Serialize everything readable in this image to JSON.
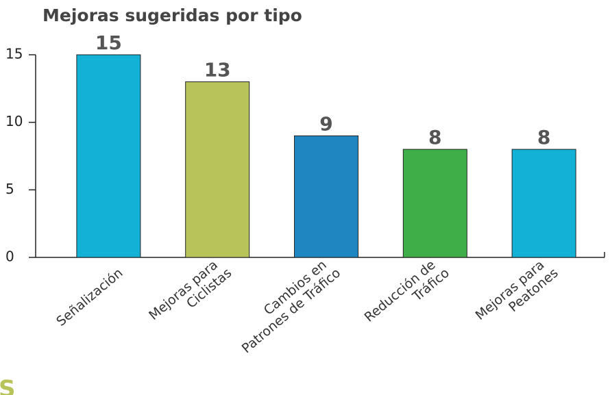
{
  "chart_data": {
    "type": "bar",
    "title": "Mejoras sugeridas por tipo",
    "categories": [
      "Señalización",
      "Mejoras para\nCiclistas",
      "Cambios en\nPatrones de Tráfico",
      "Reducción de\nTráfico",
      "Mejoras para\nPeatones"
    ],
    "values": [
      15,
      13,
      9,
      8,
      8
    ],
    "colors": [
      "#14b1d6",
      "#b8c35a",
      "#1f86c1",
      "#3fae49",
      "#14b1d6"
    ],
    "ylim": [
      0,
      15
    ],
    "yticks": [
      0,
      5,
      10,
      15
    ]
  },
  "page_fragment": "S"
}
